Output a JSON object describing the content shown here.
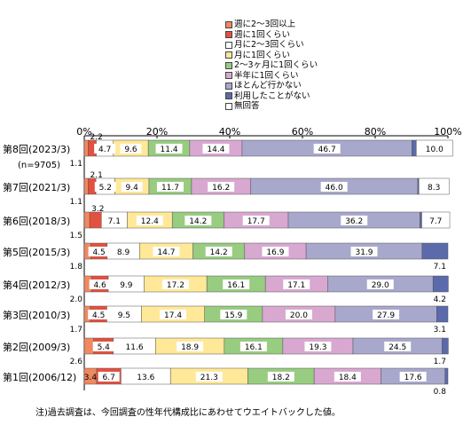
{
  "chart_data": {
    "type": "bar",
    "orientation": "horizontal",
    "stacked": true,
    "percent": true,
    "legend": [
      "週に2～3回以上",
      "週に1回くらい",
      "月に2～3回くらい",
      "月に1回くらい",
      "2～3ヶ月に1回くらい",
      "半年に1回くらい",
      "ほとんど行かない",
      "利用したことがない",
      "無回答"
    ],
    "colors": [
      "#f08860",
      "#e45040",
      "#ffffff",
      "#ffe898",
      "#98cc80",
      "#d8a8d0",
      "#a8a8cc",
      "#5a6aaa",
      "#ffffff"
    ],
    "categories": [
      "第8回(2023/3)",
      "第7回(2021/3)",
      "第6回(2018/3)",
      "第5回(2015/3)",
      "第4回(2012/3)",
      "第3回(2010/3)",
      "第2回(2009/3)",
      "第1回(2006/12)"
    ],
    "category_note": "(n=9705)",
    "series": [
      {
        "name": "週に2～3回以上",
        "values": [
          1.1,
          1.1,
          1.5,
          1.8,
          2.0,
          1.7,
          2.6,
          3.4
        ]
      },
      {
        "name": "週に1回くらい",
        "values": [
          2.2,
          2.1,
          3.2,
          4.5,
          4.6,
          4.5,
          5.4,
          6.7
        ]
      },
      {
        "name": "月に2～3回くらい",
        "values": [
          4.7,
          5.2,
          7.1,
          8.9,
          9.9,
          9.5,
          11.6,
          13.6
        ]
      },
      {
        "name": "月に1回くらい",
        "values": [
          9.6,
          9.4,
          12.4,
          14.7,
          17.2,
          17.4,
          18.9,
          21.3
        ]
      },
      {
        "name": "2～3ヶ月に1回くらい",
        "values": [
          11.4,
          11.7,
          14.2,
          14.2,
          16.1,
          15.9,
          16.1,
          18.2
        ]
      },
      {
        "name": "半年に1回くらい",
        "values": [
          14.4,
          16.2,
          17.7,
          16.9,
          17.1,
          20.0,
          19.3,
          18.4
        ]
      },
      {
        "name": "ほとんど行かない",
        "values": [
          46.7,
          46.0,
          36.2,
          31.9,
          29.0,
          27.9,
          24.5,
          17.6
        ]
      },
      {
        "name": "利用したことがない",
        "values": [
          1.2,
          0.3,
          0.5,
          7.1,
          4.2,
          3.1,
          1.7,
          0.8
        ]
      },
      {
        "name": "無回答",
        "values": [
          10.0,
          8.3,
          7.7,
          0,
          0,
          0,
          0,
          0
        ]
      }
    ],
    "data_labels": [
      [
        "1.1",
        "2.2",
        "4.7",
        "9.6",
        "11.4",
        "14.4",
        "46.7",
        "",
        "10.0"
      ],
      [
        "1.1",
        "2.1",
        "5.2",
        "9.4",
        "11.7",
        "16.2",
        "46.0",
        "",
        "8.3"
      ],
      [
        "1.5",
        "3.2",
        "7.1",
        "12.4",
        "14.2",
        "17.7",
        "36.2",
        "",
        "7.7"
      ],
      [
        "1.8",
        "4.5",
        "8.9",
        "14.7",
        "14.2",
        "16.9",
        "31.9",
        "7.1",
        ""
      ],
      [
        "2.0",
        "4.6",
        "9.9",
        "17.2",
        "16.1",
        "17.1",
        "29.0",
        "4.2",
        ""
      ],
      [
        "1.7",
        "4.5",
        "9.5",
        "17.4",
        "15.9",
        "20.0",
        "27.9",
        "3.1",
        ""
      ],
      [
        "2.6",
        "5.4",
        "11.6",
        "18.9",
        "16.1",
        "19.3",
        "24.5",
        "1.7",
        ""
      ],
      [
        "3.4",
        "6.7",
        "13.6",
        "21.3",
        "18.2",
        "18.4",
        "17.6",
        "0.8",
        ""
      ]
    ],
    "x_ticks": [
      "0%",
      "20%",
      "40%",
      "60%",
      "80%",
      "100%"
    ],
    "xlim": [
      0,
      100
    ],
    "grid": false,
    "legend_position": "top"
  },
  "note": "注)過去調査は、今回調査の性年代構成比にあわせてウエイトバックした値。"
}
